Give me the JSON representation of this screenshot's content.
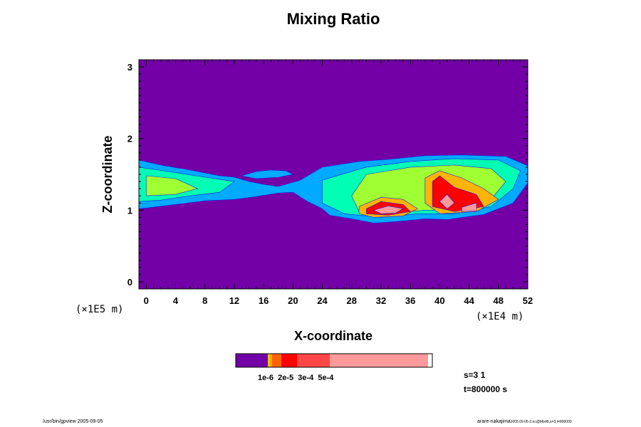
{
  "chart_data": {
    "type": "heatmap",
    "title": "Mixing Ratio",
    "xlabel": "X-coordinate",
    "ylabel": "Z-coordinate",
    "x_scale_label": "(×1E4 m)",
    "y_scale_label": "(×1E5 m)",
    "xlim": [
      -1,
      52
    ],
    "ylim": [
      -0.1,
      3.1
    ],
    "x_ticks": [
      0,
      4,
      8,
      12,
      16,
      20,
      24,
      28,
      32,
      36,
      40,
      44,
      48,
      52
    ],
    "y_ticks": [
      0,
      1,
      2,
      3
    ],
    "background_color": "#7200a6",
    "contour_colors": [
      "#7200a6",
      "#1e1ee0",
      "#00aaff",
      "#00f0f0",
      "#00ffb4",
      "#50ff64",
      "#a0ff32",
      "#e6ff00",
      "#ffb400",
      "#ff5a1e",
      "#ff0000",
      "#ff4646",
      "#ff9a9a"
    ],
    "features": [
      {
        "level": "outer",
        "color": "#00aaff",
        "polygons": [
          [
            [
              -1,
              1.7
            ],
            [
              2,
              1.63
            ],
            [
              6,
              1.56
            ],
            [
              10,
              1.48
            ],
            [
              12,
              1.46
            ],
            [
              14,
              1.4
            ],
            [
              16,
              1.36
            ],
            [
              18,
              1.33
            ],
            [
              21,
              1.42
            ],
            [
              24,
              1.6
            ],
            [
              29,
              1.68
            ],
            [
              33,
              1.71
            ],
            [
              38,
              1.76
            ],
            [
              43,
              1.77
            ],
            [
              49,
              1.75
            ],
            [
              52,
              1.62
            ],
            [
              52,
              1.38
            ],
            [
              50,
              1.1
            ],
            [
              46,
              0.94
            ],
            [
              41,
              0.87
            ],
            [
              38,
              0.88
            ],
            [
              34,
              0.84
            ],
            [
              31,
              0.82
            ],
            [
              28,
              0.88
            ],
            [
              25,
              0.93
            ],
            [
              24,
              1.02
            ],
            [
              22,
              1.12
            ],
            [
              20,
              1.25
            ],
            [
              18,
              1.24
            ],
            [
              15,
              1.19
            ],
            [
              12,
              1.15
            ],
            [
              8,
              1.13
            ],
            [
              4,
              1.08
            ],
            [
              0,
              1.03
            ],
            [
              -1,
              1.02
            ]
          ],
          [
            [
              13,
              1.48
            ],
            [
              15,
              1.54
            ],
            [
              17,
              1.56
            ],
            [
              19,
              1.55
            ],
            [
              20,
              1.5
            ],
            [
              18,
              1.46
            ],
            [
              15,
              1.44
            ]
          ]
        ]
      },
      {
        "level": "mid",
        "color": "#00ffb4",
        "polygons": [
          [
            [
              -1,
              1.6
            ],
            [
              3,
              1.54
            ],
            [
              8,
              1.46
            ],
            [
              12,
              1.4
            ],
            [
              10,
              1.25
            ],
            [
              6,
              1.2
            ],
            [
              2,
              1.14
            ],
            [
              -1,
              1.12
            ]
          ],
          [
            [
              24,
              1.42
            ],
            [
              30,
              1.6
            ],
            [
              36,
              1.68
            ],
            [
              42,
              1.72
            ],
            [
              48,
              1.7
            ],
            [
              51,
              1.55
            ],
            [
              50,
              1.3
            ],
            [
              47,
              1.05
            ],
            [
              42,
              0.95
            ],
            [
              37,
              0.95
            ],
            [
              32,
              0.9
            ],
            [
              27,
              0.95
            ],
            [
              24,
              1.1
            ]
          ]
        ]
      },
      {
        "level": "inner",
        "color": "#a0ff32",
        "polygons": [
          [
            [
              0,
              1.48
            ],
            [
              4,
              1.44
            ],
            [
              7,
              1.3
            ],
            [
              4,
              1.22
            ],
            [
              0,
              1.2
            ]
          ],
          [
            [
              30,
              1.5
            ],
            [
              36,
              1.6
            ],
            [
              42,
              1.63
            ],
            [
              47,
              1.58
            ],
            [
              49,
              1.4
            ],
            [
              47,
              1.15
            ],
            [
              43,
              1.0
            ],
            [
              38,
              1.0
            ],
            [
              33,
              0.95
            ],
            [
              29,
              0.98
            ],
            [
              28,
              1.2
            ]
          ]
        ]
      },
      {
        "level": "warm",
        "color": "#ffb400",
        "polygons": [
          [
            [
              29,
              1.05
            ],
            [
              32,
              1.18
            ],
            [
              35,
              1.15
            ],
            [
              37,
              1.02
            ],
            [
              35,
              0.92
            ],
            [
              31,
              0.9
            ],
            [
              29,
              0.95
            ]
          ],
          [
            [
              38,
              1.45
            ],
            [
              40,
              1.55
            ],
            [
              43,
              1.45
            ],
            [
              46,
              1.3
            ],
            [
              48,
              1.15
            ],
            [
              45,
              0.98
            ],
            [
              40,
              0.95
            ],
            [
              38,
              1.1
            ]
          ]
        ]
      },
      {
        "level": "hot",
        "color": "#ff0000",
        "polygons": [
          [
            [
              30,
              1.02
            ],
            [
              32,
              1.12
            ],
            [
              35,
              1.08
            ],
            [
              36,
              0.98
            ],
            [
              33,
              0.93
            ],
            [
              30,
              0.95
            ]
          ],
          [
            [
              39,
              1.4
            ],
            [
              40,
              1.48
            ],
            [
              42,
              1.32
            ],
            [
              45,
              1.22
            ],
            [
              46,
              1.05
            ],
            [
              42,
              0.98
            ],
            [
              39,
              1.05
            ]
          ]
        ]
      },
      {
        "level": "peak",
        "color": "#ff9a9a",
        "polygons": [
          [
            [
              31,
              1.0
            ],
            [
              33,
              1.06
            ],
            [
              35,
              1.02
            ],
            [
              34,
              0.96
            ],
            [
              32,
              0.95
            ]
          ],
          [
            [
              40,
              1.12
            ],
            [
              41,
              1.22
            ],
            [
              42,
              1.1
            ],
            [
              41,
              1.02
            ]
          ],
          [
            [
              43,
              1.04
            ],
            [
              45,
              1.1
            ],
            [
              45,
              0.99
            ],
            [
              43,
              0.98
            ]
          ]
        ]
      }
    ],
    "colorbar": {
      "colors": [
        "#7200a6",
        "#e6c800",
        "#ffa500",
        "#ff6400",
        "#ff0000",
        "#ff4646",
        "#ff9a9a"
      ],
      "widths": [
        45,
        3,
        3,
        13,
        22,
        46,
        138
      ],
      "labels": "1e-6  2e-5  3e-4  5e-4"
    }
  },
  "info": {
    "s_label": "s=3 1",
    "t_label": "t=800000 s"
  },
  "footer": {
    "left": "/usr/bin/gpview 2005-09-05",
    "right_main": "arare-nakajima",
    "right_small": "2005.09.05-3.nc@MixRt,s=3,t=800000"
  }
}
